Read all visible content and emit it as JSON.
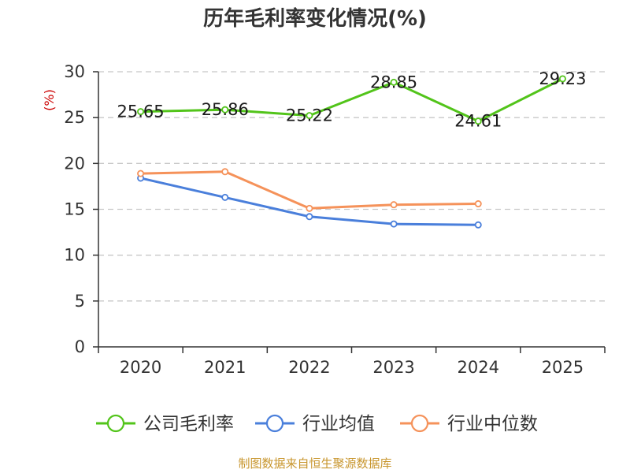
{
  "chart_data": {
    "type": "line",
    "title": "历年毛利率变化情况(%)",
    "ylabel": "(%)",
    "xlabel": "",
    "ylim": [
      0,
      30
    ],
    "yticks": [
      0,
      5,
      10,
      15,
      20,
      25,
      30
    ],
    "categories": [
      "2020",
      "2021",
      "2022",
      "2023",
      "2024",
      "2025"
    ],
    "grid": true,
    "legend_position": "bottom",
    "series": [
      {
        "name": "公司毛利率",
        "color": "#52c41a",
        "values": [
          25.65,
          25.86,
          25.22,
          28.85,
          24.61,
          29.23
        ],
        "labels": [
          "25.65",
          "25.86",
          "25.22",
          "28.85",
          "24.61",
          "29.23"
        ],
        "show_labels": true
      },
      {
        "name": "行业均值",
        "color": "#4a7fdb",
        "values": [
          18.4,
          16.3,
          14.2,
          13.4,
          13.3,
          null
        ],
        "show_labels": false
      },
      {
        "name": "行业中位数",
        "color": "#f5925a",
        "values": [
          18.9,
          19.1,
          15.1,
          15.5,
          15.6,
          null
        ],
        "show_labels": false
      }
    ],
    "source": "制图数据来自恒生聚源数据库"
  }
}
